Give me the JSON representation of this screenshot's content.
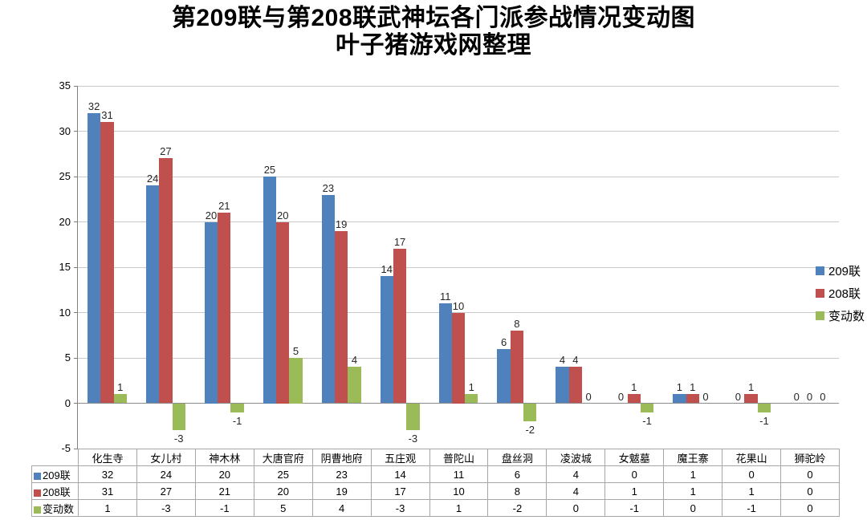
{
  "title": {
    "line1": "第209联与第208联武神坛各门派参战情况变动图",
    "line2": "叶子猪游戏网整理"
  },
  "chart_data": {
    "type": "bar",
    "title": "第209联与第208联武神坛各门派参战情况变动图 叶子猪游戏网整理",
    "categories": [
      "化生寺",
      "女儿村",
      "神木林",
      "大唐官府",
      "阴曹地府",
      "五庄观",
      "普陀山",
      "盘丝洞",
      "凌波城",
      "女魃墓",
      "魔王寨",
      "花果山",
      "狮驼岭"
    ],
    "series": [
      {
        "name": "209联",
        "color": "#4F81BD",
        "values": [
          32,
          24,
          20,
          25,
          23,
          14,
          11,
          6,
          4,
          0,
          1,
          0,
          0
        ]
      },
      {
        "name": "208联",
        "color": "#C0504D",
        "values": [
          31,
          27,
          21,
          20,
          19,
          17,
          10,
          8,
          4,
          1,
          1,
          1,
          0
        ]
      },
      {
        "name": "变动数",
        "color": "#9BBB59",
        "values": [
          1,
          -3,
          -1,
          5,
          4,
          -3,
          1,
          -2,
          0,
          -1,
          0,
          -1,
          0
        ]
      }
    ],
    "ylim": [
      -5,
      35
    ],
    "ytick_step": 5,
    "grid": true,
    "legend_position": "right",
    "data_table_shown": true,
    "data_labels_shown": true
  }
}
